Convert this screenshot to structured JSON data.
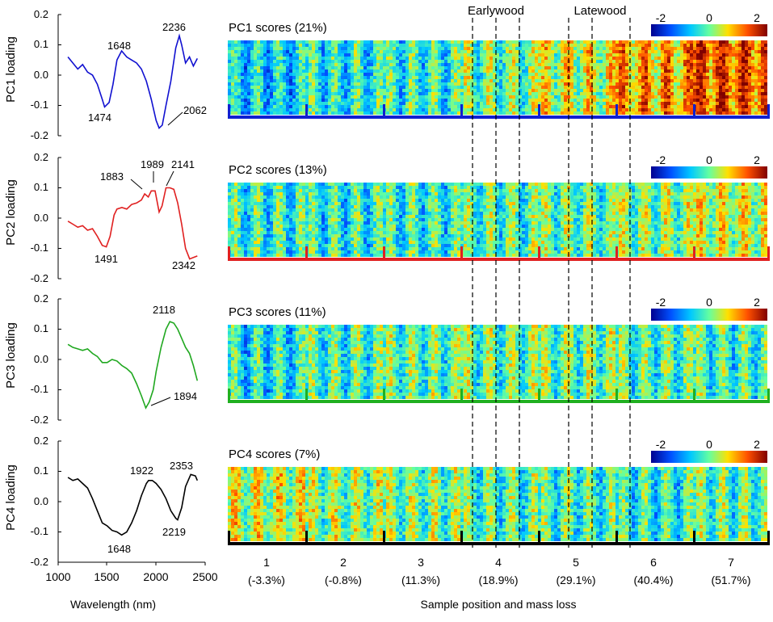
{
  "figure": {
    "wavelength_xlabel": "Wavelength (nm)",
    "sample_xlabel": "Sample position and mass loss",
    "earlywood_label": "Earlywood",
    "latewood_label": "Latewood",
    "x_ticks": [
      "1000",
      "1500",
      "2000",
      "2500"
    ],
    "colorbar": {
      "min_label": "-2",
      "mid_label": "0",
      "max_label": "2"
    },
    "samples": [
      {
        "position": "1",
        "mass_loss": "(-3.3%)"
      },
      {
        "position": "2",
        "mass_loss": "(-0.8%)"
      },
      {
        "position": "3",
        "mass_loss": "(11.3%)"
      },
      {
        "position": "4",
        "mass_loss": "(18.9%)"
      },
      {
        "position": "5",
        "mass_loss": "(29.1%)"
      },
      {
        "position": "6",
        "mass_loss": "(40.4%)"
      },
      {
        "position": "7",
        "mass_loss": "(51.7%)"
      }
    ]
  },
  "chart_data": [
    {
      "type": "line",
      "ylabel": "PC1 loading",
      "xlabel": "Wavelength (nm)",
      "xlim": [
        1000,
        2500
      ],
      "ylim": [
        -0.2,
        0.2
      ],
      "y_ticks": [
        "-0.2",
        "-0.1",
        "0.0",
        "0.1",
        "0.2"
      ],
      "color": "#1010d0",
      "x": [
        1100,
        1150,
        1200,
        1250,
        1300,
        1350,
        1400,
        1450,
        1474,
        1520,
        1560,
        1600,
        1648,
        1700,
        1750,
        1800,
        1850,
        1900,
        1950,
        2000,
        2030,
        2062,
        2100,
        2150,
        2200,
        2236,
        2260,
        2300,
        2340,
        2380,
        2420
      ],
      "y": [
        0.06,
        0.04,
        0.02,
        0.035,
        0.01,
        0.0,
        -0.03,
        -0.08,
        -0.105,
        -0.09,
        -0.03,
        0.05,
        0.08,
        0.06,
        0.05,
        0.04,
        0.02,
        -0.02,
        -0.08,
        -0.15,
        -0.175,
        -0.165,
        -0.1,
        -0.02,
        0.09,
        0.13,
        0.1,
        0.04,
        0.06,
        0.03,
        0.055
      ],
      "annotations": [
        "1648",
        "1474",
        "2236",
        "2062"
      ]
    },
    {
      "type": "line",
      "ylabel": "PC2 loading",
      "xlabel": "Wavelength (nm)",
      "xlim": [
        1000,
        2500
      ],
      "ylim": [
        -0.2,
        0.2
      ],
      "y_ticks": [
        "-0.2",
        "-0.1",
        "0.0",
        "0.1",
        "0.2"
      ],
      "color": "#e02020",
      "x": [
        1100,
        1150,
        1200,
        1250,
        1300,
        1350,
        1400,
        1450,
        1491,
        1530,
        1570,
        1600,
        1650,
        1700,
        1750,
        1800,
        1850,
        1883,
        1920,
        1950,
        1989,
        2030,
        2060,
        2100,
        2141,
        2180,
        2220,
        2260,
        2300,
        2342,
        2380,
        2420
      ],
      "y": [
        -0.01,
        -0.02,
        -0.03,
        -0.025,
        -0.04,
        -0.035,
        -0.06,
        -0.09,
        -0.095,
        -0.06,
        0.01,
        0.03,
        0.035,
        0.03,
        0.045,
        0.05,
        0.06,
        0.08,
        0.07,
        0.09,
        0.09,
        0.02,
        0.04,
        0.1,
        0.1,
        0.095,
        0.05,
        -0.02,
        -0.1,
        -0.135,
        -0.13,
        -0.125
      ],
      "annotations": [
        "1883",
        "1989",
        "2141",
        "1491",
        "2342"
      ]
    },
    {
      "type": "line",
      "ylabel": "PC3 loading",
      "xlabel": "Wavelength (nm)",
      "xlim": [
        1000,
        2500
      ],
      "ylim": [
        -0.2,
        0.2
      ],
      "y_ticks": [
        "-0.2",
        "-0.1",
        "0.0",
        "0.1",
        "0.2"
      ],
      "color": "#20a820",
      "x": [
        1100,
        1150,
        1200,
        1250,
        1300,
        1350,
        1400,
        1450,
        1500,
        1550,
        1600,
        1650,
        1700,
        1750,
        1800,
        1850,
        1894,
        1930,
        1970,
        2000,
        2050,
        2100,
        2140,
        2180,
        2220,
        2260,
        2300,
        2340,
        2380,
        2420
      ],
      "y": [
        0.05,
        0.04,
        0.035,
        0.03,
        0.035,
        0.02,
        0.01,
        -0.01,
        -0.01,
        0.0,
        -0.005,
        -0.02,
        -0.03,
        -0.045,
        -0.08,
        -0.12,
        -0.16,
        -0.14,
        -0.1,
        -0.04,
        0.04,
        0.1,
        0.125,
        0.12,
        0.1,
        0.07,
        0.04,
        0.02,
        -0.02,
        -0.07
      ],
      "annotations": [
        "2118",
        "1894"
      ]
    },
    {
      "type": "line",
      "ylabel": "PC4 loading",
      "xlabel": "Wavelength (nm)",
      "xlim": [
        1000,
        2500
      ],
      "ylim": [
        -0.2,
        0.2
      ],
      "y_ticks": [
        "-0.2",
        "-0.1",
        "0.0",
        "0.1",
        "0.2"
      ],
      "color": "#000000",
      "x": [
        1100,
        1150,
        1200,
        1250,
        1300,
        1350,
        1400,
        1450,
        1500,
        1550,
        1600,
        1648,
        1700,
        1750,
        1800,
        1850,
        1900,
        1922,
        1960,
        2000,
        2050,
        2100,
        2150,
        2200,
        2219,
        2260,
        2300,
        2353,
        2400,
        2420
      ],
      "y": [
        0.08,
        0.07,
        0.075,
        0.06,
        0.045,
        0.01,
        -0.03,
        -0.07,
        -0.08,
        -0.095,
        -0.1,
        -0.11,
        -0.1,
        -0.07,
        -0.03,
        0.02,
        0.06,
        0.07,
        0.07,
        0.06,
        0.04,
        0.01,
        -0.03,
        -0.055,
        -0.06,
        -0.02,
        0.05,
        0.09,
        0.085,
        0.07
      ],
      "annotations": [
        "1922",
        "2353",
        "2219",
        "1648"
      ]
    },
    {
      "type": "heatmap",
      "title": "PC1 scores (21%)",
      "colormap": [
        "#00008f",
        "#0050ff",
        "#00c8ff",
        "#64ffa0",
        "#ffe000",
        "#ff5000",
        "#800000"
      ],
      "value_range": [
        -2,
        2
      ],
      "sample_mean_scores": [
        -0.6,
        -0.4,
        -0.3,
        0.0,
        0.4,
        0.9,
        1.3
      ],
      "bar_color": "#1020d0"
    },
    {
      "type": "heatmap",
      "title": "PC2 scores (13%)",
      "colormap": [
        "#00008f",
        "#0050ff",
        "#00c8ff",
        "#64ffa0",
        "#ffe000",
        "#ff5000",
        "#800000"
      ],
      "value_range": [
        -2,
        2
      ],
      "sample_mean_scores": [
        -0.3,
        -0.35,
        -0.3,
        -0.15,
        -0.05,
        0.1,
        0.35
      ],
      "bar_color": "#e02020"
    },
    {
      "type": "heatmap",
      "title": "PC3 scores (11%)",
      "colormap": [
        "#00008f",
        "#0050ff",
        "#00c8ff",
        "#64ffa0",
        "#ffe000",
        "#ff5000",
        "#800000"
      ],
      "value_range": [
        -2,
        2
      ],
      "sample_mean_scores": [
        -0.45,
        -0.2,
        -0.1,
        -0.05,
        0.0,
        -0.15,
        -0.2
      ],
      "bar_color": "#20b020"
    },
    {
      "type": "heatmap",
      "title": "PC4 scores (7%)",
      "colormap": [
        "#00008f",
        "#0050ff",
        "#00c8ff",
        "#64ffa0",
        "#ffe000",
        "#ff5000",
        "#800000"
      ],
      "value_range": [
        -2,
        2
      ],
      "sample_mean_scores": [
        0.35,
        0.1,
        0.0,
        -0.15,
        -0.2,
        -0.3,
        -0.1
      ],
      "bar_color": "#000000"
    }
  ]
}
